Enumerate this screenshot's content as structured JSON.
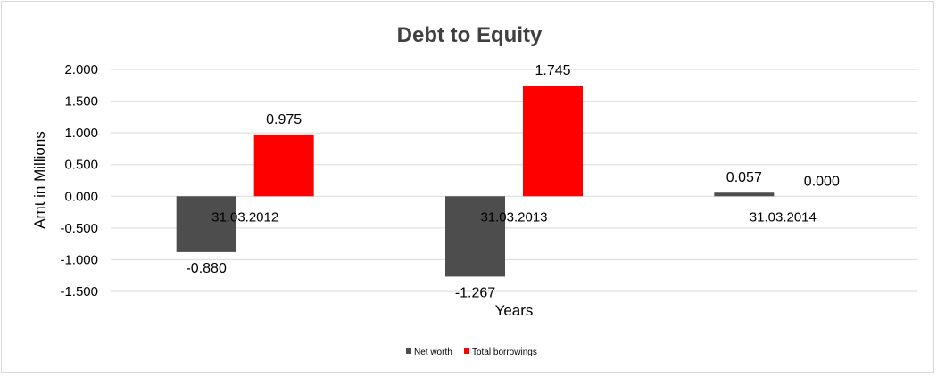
{
  "chart_data": {
    "type": "bar",
    "title": "Debt to Equity",
    "xlabel": "Years",
    "ylabel": "Amt in Millions",
    "categories": [
      "31.03.2012",
      "31.03.2013",
      "31.03.2014"
    ],
    "series": [
      {
        "name": "Net worth",
        "values": [
          -0.88,
          -1.267,
          0.057
        ],
        "labels": [
          "-0.880",
          "-1.267",
          "0.057"
        ],
        "color": "#4d4d4d"
      },
      {
        "name": "Total borrowings",
        "values": [
          0.975,
          1.745,
          0.0
        ],
        "labels": [
          "0.975",
          "1.745",
          "0.000"
        ],
        "color": "#ff0000"
      }
    ],
    "ylim": [
      -1.5,
      2.0
    ],
    "yticks": [
      2.0,
      1.5,
      1.0,
      0.5,
      0.0,
      -0.5,
      -1.0,
      -1.5
    ],
    "ytick_labels": [
      "2.000",
      "1.500",
      "1.000",
      "0.500",
      "0.000",
      "-0.500",
      "-1.000",
      "-1.500"
    ],
    "grid": true,
    "legend_position": "bottom"
  }
}
